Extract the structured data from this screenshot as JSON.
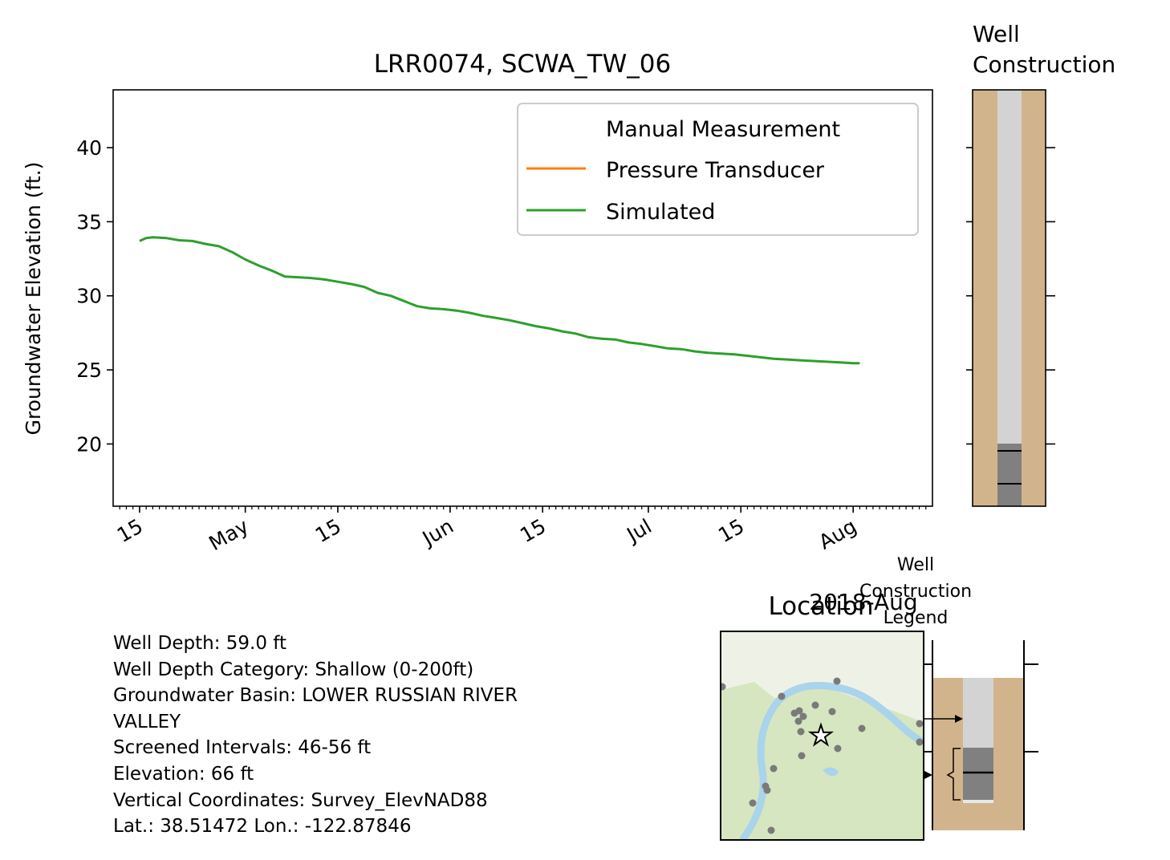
{
  "chart_data": [
    {
      "type": "line",
      "title": "LRR0074, SCWA_TW_06",
      "ylabel": "Groundwater Elevation (ft.)",
      "xlabel": "",
      "ylim": [
        15.8,
        43.9
      ],
      "xlim": [
        "2018-04-11",
        "2018-08-13"
      ],
      "yticks": [
        20,
        25,
        30,
        35,
        40
      ],
      "xtick_labels": [
        {
          "date": "2018-04-15",
          "label": "15"
        },
        {
          "date": "2018-05-01",
          "label": "May"
        },
        {
          "date": "2018-05-15",
          "label": "15"
        },
        {
          "date": "2018-06-01",
          "label": "Jun"
        },
        {
          "date": "2018-06-15",
          "label": "15"
        },
        {
          "date": "2018-07-01",
          "label": "Jul"
        },
        {
          "date": "2018-07-15",
          "label": "15"
        },
        {
          "date": "2018-08-01",
          "label": "Aug"
        }
      ],
      "offset_label": "2018-Aug",
      "legend": {
        "placement": "upper right",
        "entries": [
          {
            "name": "Manual Measurement",
            "color": "none"
          },
          {
            "name": "Pressure Transducer",
            "color": "#ff7f0e"
          },
          {
            "name": "Simulated",
            "color": "#2ca02c"
          }
        ]
      },
      "series": [
        {
          "name": "Manual Measurement",
          "x": [],
          "y": []
        },
        {
          "name": "Pressure Transducer",
          "x": [],
          "y": []
        },
        {
          "name": "Simulated",
          "color": "#2ca02c",
          "x": [
            "2018-04-15",
            "2018-04-16",
            "2018-04-17",
            "2018-04-19",
            "2018-04-21",
            "2018-04-23",
            "2018-04-25",
            "2018-04-27",
            "2018-04-29",
            "2018-05-01",
            "2018-05-03",
            "2018-05-05",
            "2018-05-07",
            "2018-05-09",
            "2018-05-11",
            "2018-05-13",
            "2018-05-15",
            "2018-05-17",
            "2018-05-19",
            "2018-05-21",
            "2018-05-23",
            "2018-05-25",
            "2018-05-27",
            "2018-05-29",
            "2018-05-31",
            "2018-06-02",
            "2018-06-04",
            "2018-06-06",
            "2018-06-08",
            "2018-06-10",
            "2018-06-12",
            "2018-06-14",
            "2018-06-16",
            "2018-06-18",
            "2018-06-20",
            "2018-06-22",
            "2018-06-24",
            "2018-06-26",
            "2018-06-28",
            "2018-06-30",
            "2018-07-02",
            "2018-07-04",
            "2018-07-06",
            "2018-07-08",
            "2018-07-10",
            "2018-07-12",
            "2018-07-14",
            "2018-07-16",
            "2018-07-18",
            "2018-07-20",
            "2018-07-22",
            "2018-07-24",
            "2018-07-26",
            "2018-07-28",
            "2018-07-30",
            "2018-08-01",
            "2018-08-02"
          ],
          "y": [
            33.7,
            33.9,
            33.95,
            33.9,
            33.75,
            33.7,
            33.5,
            33.35,
            32.95,
            32.45,
            32.05,
            31.7,
            31.3,
            31.25,
            31.2,
            31.1,
            30.95,
            30.8,
            30.6,
            30.2,
            30.0,
            29.65,
            29.3,
            29.15,
            29.1,
            29.0,
            28.85,
            28.65,
            28.5,
            28.35,
            28.15,
            27.95,
            27.8,
            27.6,
            27.45,
            27.2,
            27.1,
            27.05,
            26.85,
            26.75,
            26.6,
            26.45,
            26.4,
            26.25,
            26.15,
            26.1,
            26.05,
            25.95,
            25.85,
            25.75,
            25.7,
            25.65,
            25.6,
            25.55,
            25.5,
            25.45,
            25.45
          ]
        }
      ]
    },
    {
      "type": "other",
      "title": "Well\nConstruction",
      "description_free": true,
      "ylim": [
        15.8,
        43.9
      ],
      "yticks": [
        20,
        25,
        30,
        35,
        40
      ],
      "colors": {
        "soil": "#d2b48c",
        "casing": "#d3d3d3",
        "screen": "#808080",
        "border": "#000000"
      },
      "casing_bottom": 19.9,
      "screen_marks": [
        19.4,
        17.2
      ]
    },
    {
      "type": "other",
      "title": "Well\nConstruction\nLegend",
      "colors": {
        "soil": "#d2b48c",
        "casing": "#d3d3d3",
        "screen": "#808080"
      }
    }
  ],
  "info": {
    "lines": [
      "Well Depth: 59.0 ft",
      "Well Depth Category: Shallow (0-200ft)",
      "Groundwater Basin: LOWER RUSSIAN RIVER",
      "VALLEY",
      "Screened Intervals: 46-56 ft",
      "Elevation: 66 ft",
      "Vertical Coordinates: Survey_ElevNAD88",
      "Lat.: 38.51472 Lon.: -122.87846"
    ]
  },
  "map": {
    "title": "Location",
    "colors": {
      "land": "#eef2e6",
      "river": "#aad3ec",
      "veg": "#d6e6c0",
      "point": "#7a7a7a"
    },
    "marker_icon": "star-icon"
  }
}
